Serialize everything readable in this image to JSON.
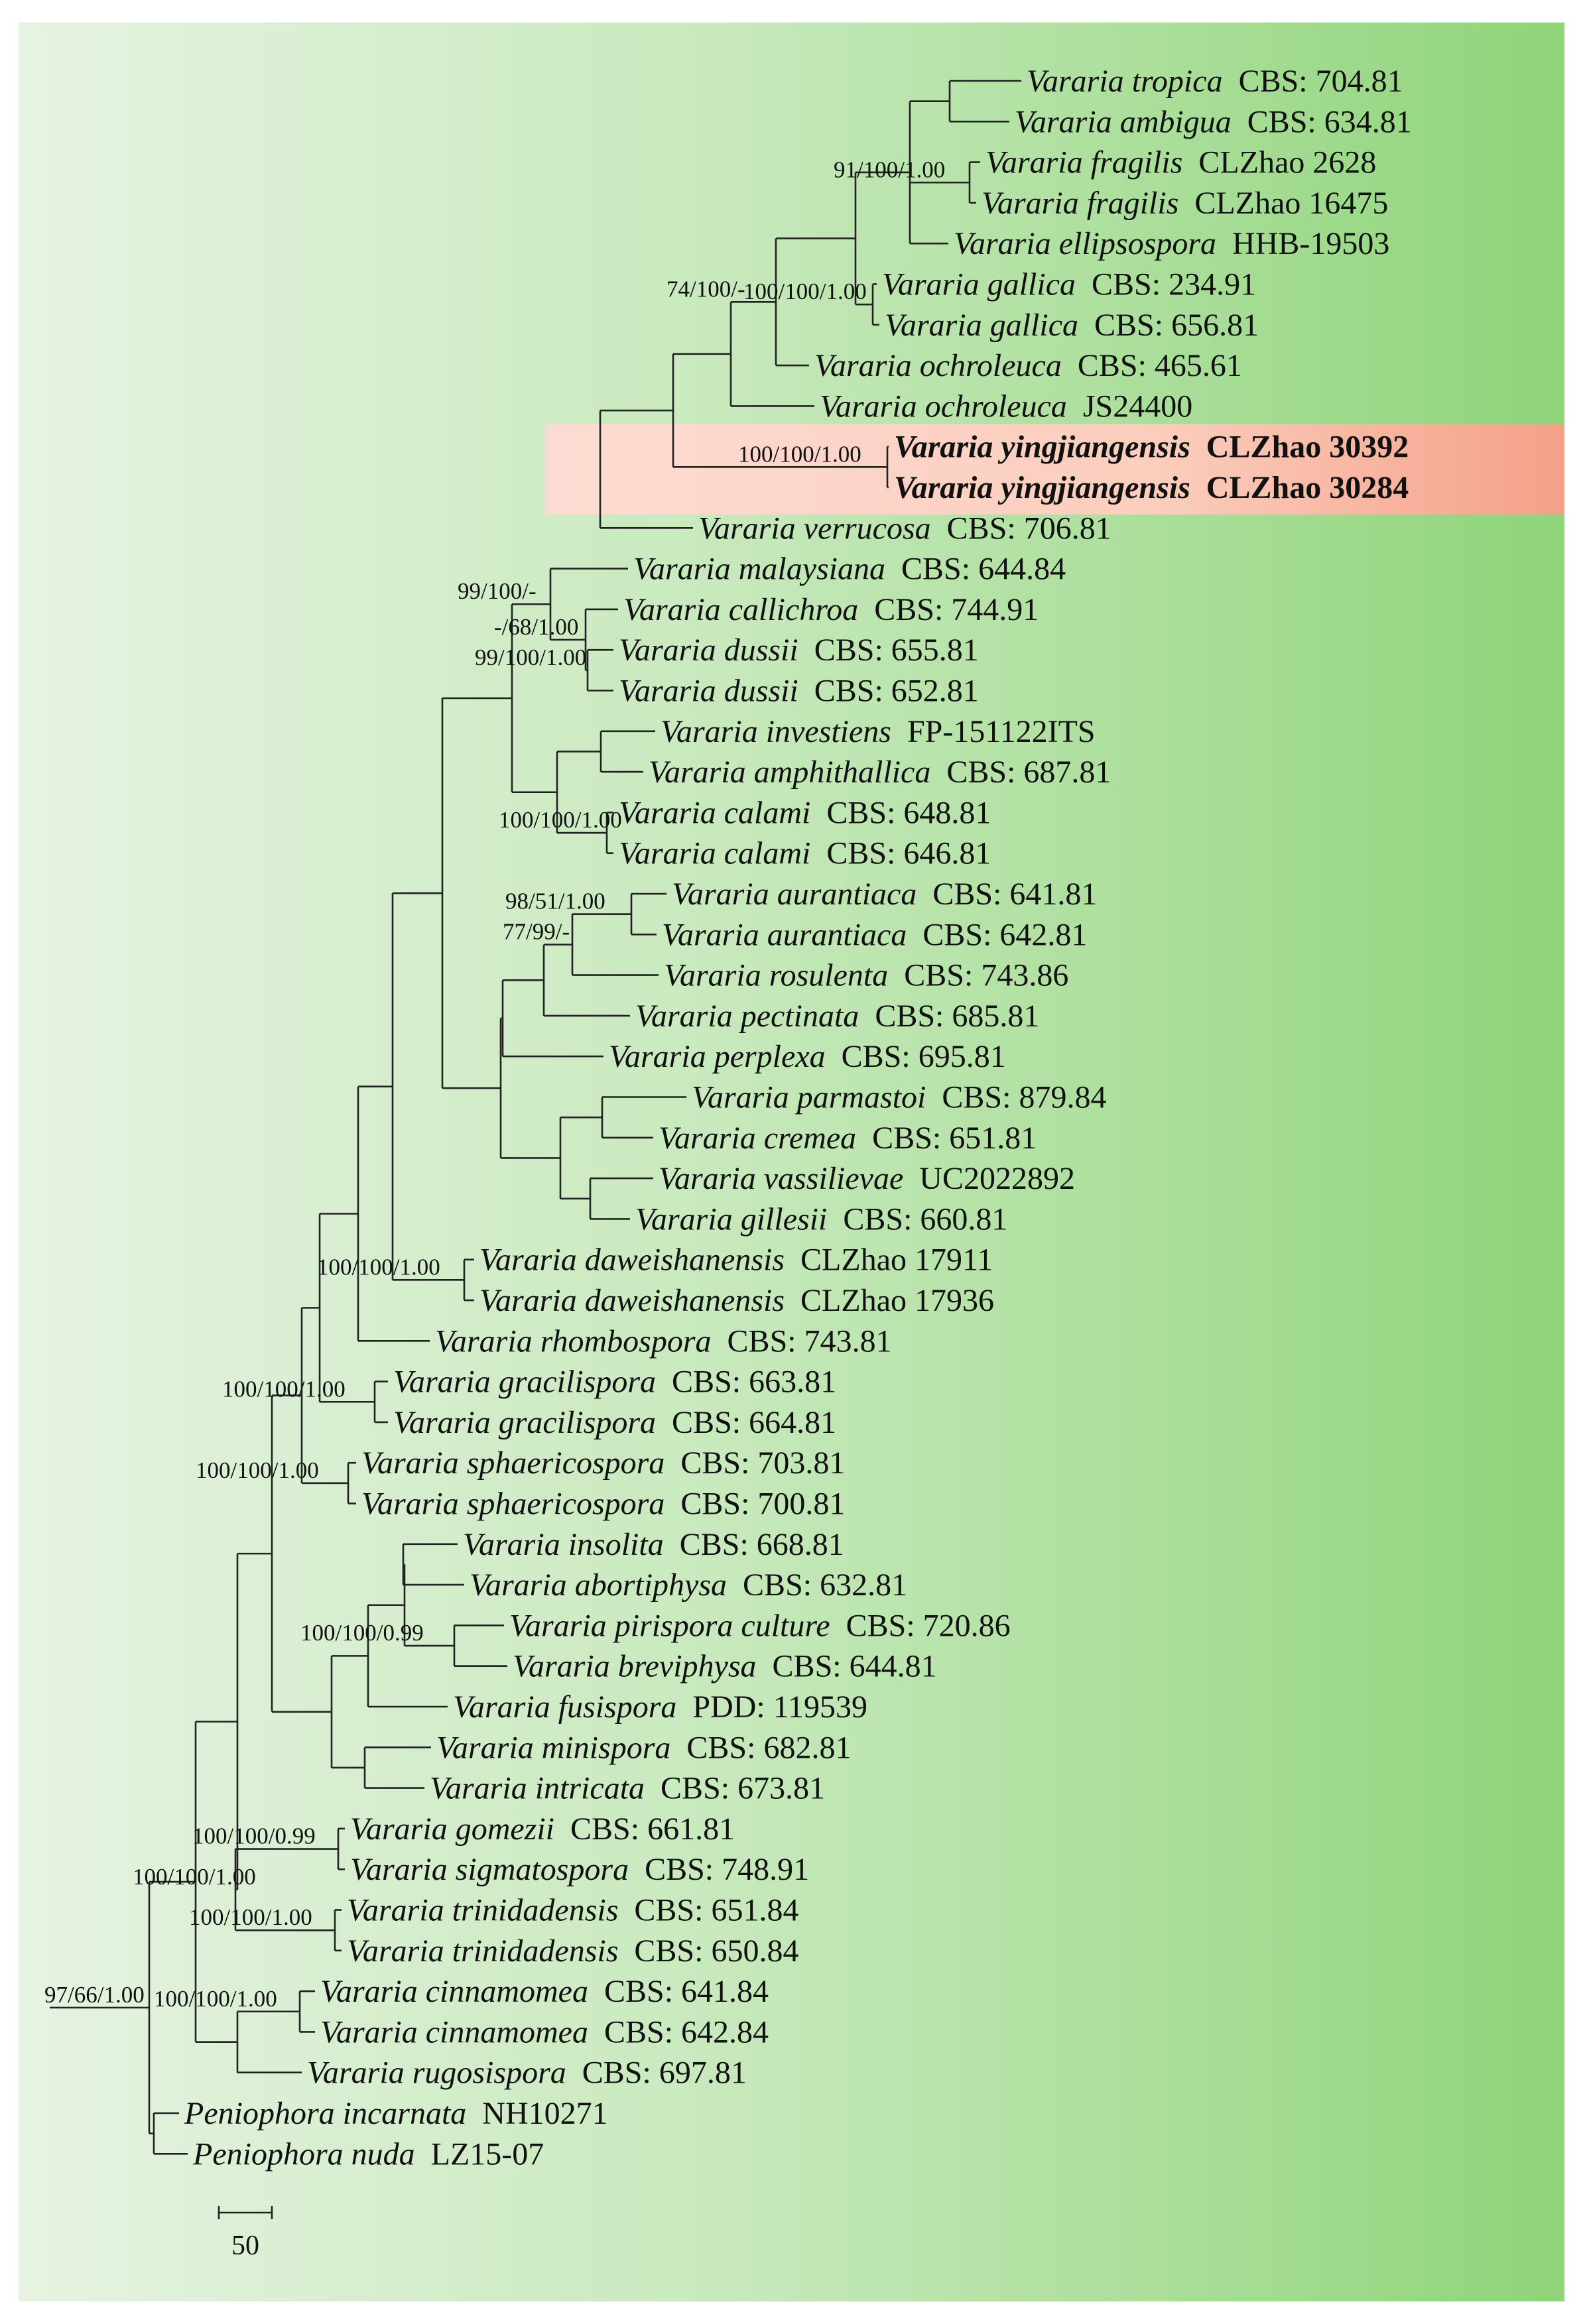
{
  "figure": {
    "type": "phylogenetic-tree",
    "colors": {
      "background_left": "#e6f3e1",
      "background_right": "#8fd47a",
      "highlight_left": "#fcdcd2",
      "highlight_right": "#f5a088",
      "branch": "#222222"
    },
    "taxa": [
      {
        "genus": "Vararia tropica",
        "code": "CBS: 704.81"
      },
      {
        "genus": "Vararia ambigua",
        "code": "CBS: 634.81"
      },
      {
        "genus": "Vararia fragilis",
        "code": "CLZhao 2628"
      },
      {
        "genus": "Vararia fragilis",
        "code": "CLZhao 16475"
      },
      {
        "genus": "Vararia ellipsospora",
        "code": "HHB-19503"
      },
      {
        "genus": "Vararia gallica",
        "code": "CBS: 234.91"
      },
      {
        "genus": "Vararia gallica",
        "code": "CBS: 656.81"
      },
      {
        "genus": "Vararia ochroleuca",
        "code": "CBS: 465.61"
      },
      {
        "genus": "Vararia ochroleuca",
        "code": "JS24400"
      },
      {
        "genus": "Vararia yingjiangensis",
        "code": "CLZhao 30392",
        "highlight": true
      },
      {
        "genus": "Vararia yingjiangensis",
        "code": "CLZhao 30284",
        "highlight": true
      },
      {
        "genus": "Vararia verrucosa",
        "code": "CBS: 706.81"
      },
      {
        "genus": "Vararia malaysiana",
        "code": "CBS: 644.84"
      },
      {
        "genus": "Vararia callichroa",
        "code": "CBS: 744.91"
      },
      {
        "genus": "Vararia dussii",
        "code": "CBS: 655.81"
      },
      {
        "genus": "Vararia dussii",
        "code": "CBS: 652.81"
      },
      {
        "genus": "Vararia investiens",
        "code": "FP-151122ITS"
      },
      {
        "genus": "Vararia amphithallica",
        "code": "CBS: 687.81"
      },
      {
        "genus": "Vararia calami",
        "code": "CBS: 648.81"
      },
      {
        "genus": "Vararia calami",
        "code": "CBS: 646.81"
      },
      {
        "genus": "Vararia aurantiaca",
        "code": "CBS: 641.81"
      },
      {
        "genus": "Vararia aurantiaca",
        "code": "CBS: 642.81"
      },
      {
        "genus": "Vararia rosulenta",
        "code": "CBS: 743.86"
      },
      {
        "genus": "Vararia pectinata",
        "code": "CBS: 685.81"
      },
      {
        "genus": "Vararia perplexa",
        "code": "CBS: 695.81"
      },
      {
        "genus": "Vararia parmastoi",
        "code": "CBS: 879.84"
      },
      {
        "genus": "Vararia cremea",
        "code": "CBS: 651.81"
      },
      {
        "genus": "Vararia vassilievae",
        "code": "UC2022892"
      },
      {
        "genus": "Vararia gillesii",
        "code": "CBS: 660.81"
      },
      {
        "genus": "Vararia daweishanensis",
        "code": "CLZhao 17911"
      },
      {
        "genus": "Vararia daweishanensis",
        "code": "CLZhao 17936"
      },
      {
        "genus": "Vararia rhombospora",
        "code": "CBS: 743.81"
      },
      {
        "genus": "Vararia gracilispora",
        "code": "CBS: 663.81"
      },
      {
        "genus": "Vararia gracilispora",
        "code": "CBS: 664.81"
      },
      {
        "genus": "Vararia sphaericospora",
        "code": "CBS: 703.81"
      },
      {
        "genus": "Vararia sphaericospora",
        "code": "CBS: 700.81"
      },
      {
        "genus": "Vararia insolita",
        "code": "CBS: 668.81"
      },
      {
        "genus": "Vararia abortiphysa",
        "code": "CBS: 632.81"
      },
      {
        "genus": "Vararia pirispora culture",
        "code": "CBS: 720.86"
      },
      {
        "genus": "Vararia breviphysa",
        "code": "CBS: 644.81"
      },
      {
        "genus": "Vararia fusispora",
        "code": "PDD: 119539"
      },
      {
        "genus": "Vararia minispora",
        "code": "CBS: 682.81"
      },
      {
        "genus": "Vararia intricata",
        "code": "CBS: 673.81"
      },
      {
        "genus": "Vararia gomezii",
        "code": "CBS: 661.81"
      },
      {
        "genus": "Vararia sigmatospora",
        "code": "CBS: 748.91"
      },
      {
        "genus": "Vararia trinidadensis",
        "code": "CBS: 651.84"
      },
      {
        "genus": "Vararia trinidadensis",
        "code": "CBS: 650.84"
      },
      {
        "genus": "Vararia cinnamomea",
        "code": "CBS: 641.84"
      },
      {
        "genus": "Vararia cinnamomea",
        "code": "CBS: 642.84"
      },
      {
        "genus": "Vararia rugosispora",
        "code": "CBS: 697.81"
      },
      {
        "genus": "Peniophora incarnata",
        "code": "NH10271"
      },
      {
        "genus": "Peniophora nuda",
        "code": "LZ15-07"
      }
    ],
    "supports": [
      "91/100/1.00",
      "100/100/1.00",
      "74/100/-",
      "100/100/1.00",
      "-/68/1.00",
      "99/100/-",
      "99/100/1.00",
      "100/100/1.00",
      "98/51/1.00",
      "77/99/-",
      "100/100/1.00",
      "100/100/1.00",
      "100/100/1.00",
      "100/100/0.99",
      "100/100/1.00",
      "100/100/0.99",
      "100/100/1.00",
      "100/100/1.00",
      "97/66/1.00"
    ],
    "scale_bar": {
      "value": 50,
      "label": "50"
    }
  }
}
